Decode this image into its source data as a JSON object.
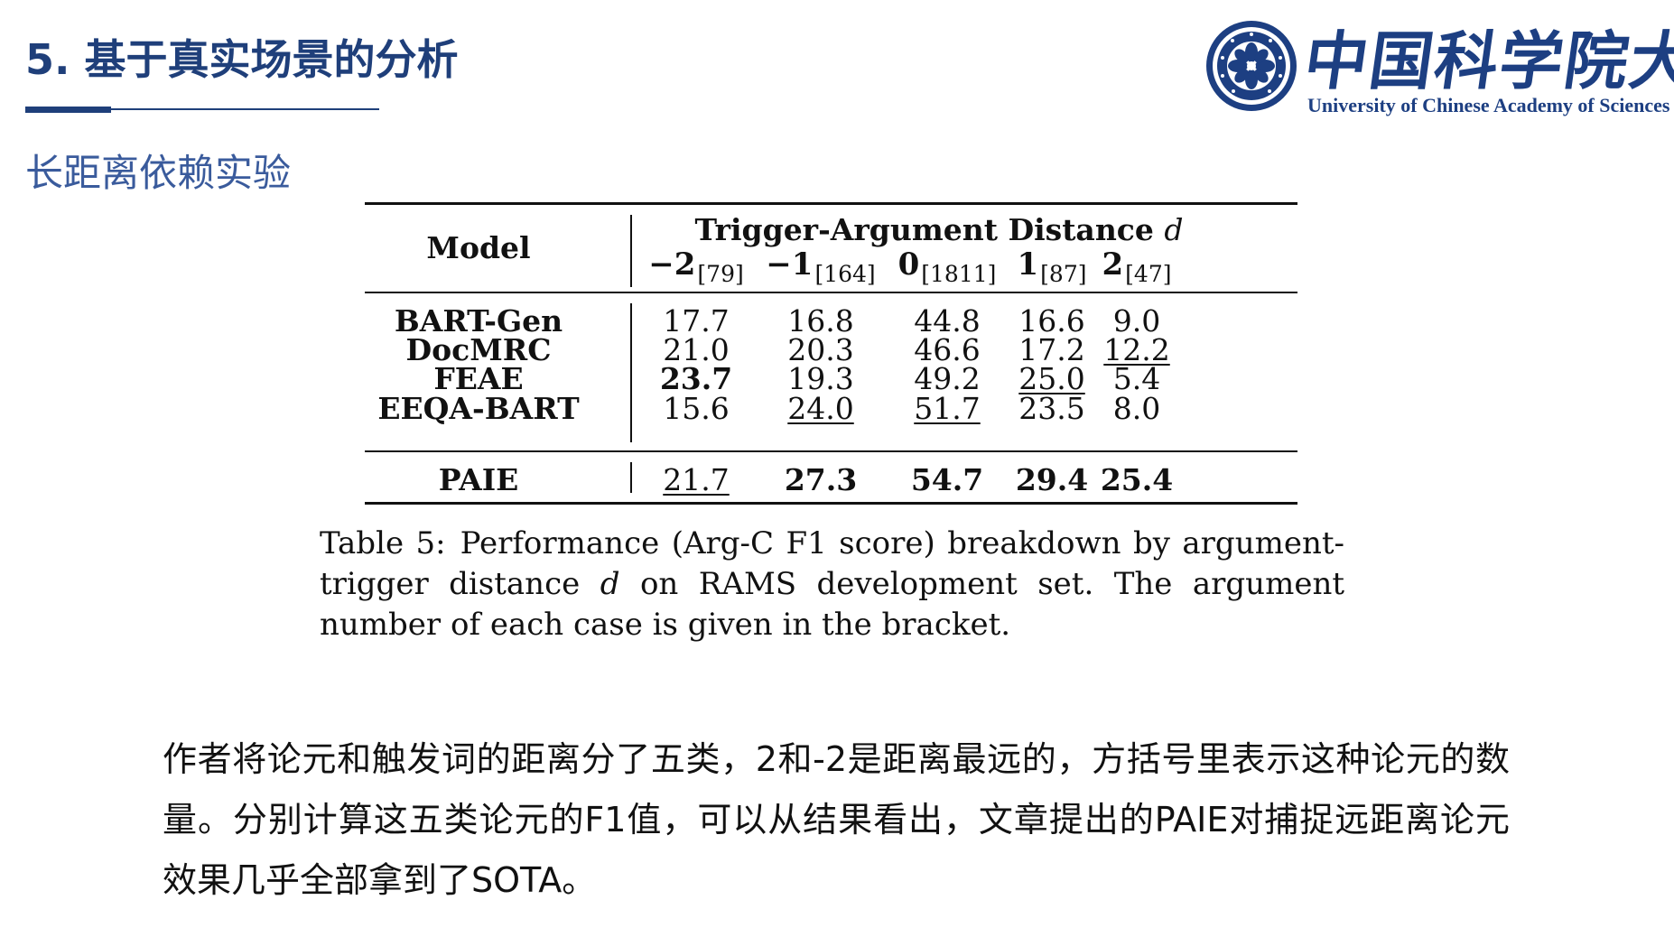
{
  "header": {
    "title": "5. 基于真实场景的分析",
    "subtitle": "长距离依赖实验"
  },
  "logo": {
    "cn_name": "中国科学院大学",
    "en_name": "University of  Chinese Academy of Sciences"
  },
  "table": {
    "model_header": "Model",
    "distance_header": "Trigger-Argument Distance",
    "distance_var": "d",
    "distances": [
      {
        "value": "−2",
        "count": "[79]"
      },
      {
        "value": "−1",
        "count": "[164]"
      },
      {
        "value": "0",
        "count": "[1811]"
      },
      {
        "value": "1",
        "count": "[87]"
      },
      {
        "value": "2",
        "count": "[47]"
      }
    ],
    "rows": [
      {
        "model": "BART-Gen",
        "cells": [
          {
            "v": "17.7",
            "bold": false,
            "ul": false
          },
          {
            "v": "16.8",
            "bold": false,
            "ul": false
          },
          {
            "v": "44.8",
            "bold": false,
            "ul": false
          },
          {
            "v": "16.6",
            "bold": false,
            "ul": false
          },
          {
            "v": "9.0",
            "bold": false,
            "ul": false
          }
        ]
      },
      {
        "model": "DocMRC",
        "cells": [
          {
            "v": "21.0",
            "bold": false,
            "ul": false
          },
          {
            "v": "20.3",
            "bold": false,
            "ul": false
          },
          {
            "v": "46.6",
            "bold": false,
            "ul": false
          },
          {
            "v": "17.2",
            "bold": false,
            "ul": false
          },
          {
            "v": "12.2",
            "bold": false,
            "ul": true
          }
        ]
      },
      {
        "model": "FEAE",
        "cells": [
          {
            "v": "23.7",
            "bold": true,
            "ul": false
          },
          {
            "v": "19.3",
            "bold": false,
            "ul": false
          },
          {
            "v": "49.2",
            "bold": false,
            "ul": false
          },
          {
            "v": "25.0",
            "bold": false,
            "ul": true
          },
          {
            "v": "5.4",
            "bold": false,
            "ul": false
          }
        ]
      },
      {
        "model": "EEQA-BART",
        "cells": [
          {
            "v": "15.6",
            "bold": false,
            "ul": false
          },
          {
            "v": "24.0",
            "bold": false,
            "ul": true
          },
          {
            "v": "51.7",
            "bold": false,
            "ul": true
          },
          {
            "v": "23.5",
            "bold": false,
            "ul": false
          },
          {
            "v": "8.0",
            "bold": false,
            "ul": false
          }
        ]
      }
    ],
    "final_row": {
      "model": "PAIE",
      "cells": [
        {
          "v": "21.7",
          "bold": false,
          "ul": true
        },
        {
          "v": "27.3",
          "bold": true,
          "ul": false
        },
        {
          "v": "54.7",
          "bold": true,
          "ul": false
        },
        {
          "v": "29.4",
          "bold": true,
          "ul": false
        },
        {
          "v": "25.4",
          "bold": true,
          "ul": false
        }
      ]
    }
  },
  "caption": {
    "label": "Table 5:",
    "before_var": "Performance (Arg-C F1 score) breakdown by argument-trigger distance ",
    "var": "d",
    "after_var": " on RAMS development set. The argument number of each case is given in the bracket."
  },
  "paragraph": "作者将论元和触发词的距离分了五类，2和-2是距离最远的，方括号里表示这种论元的数量。分别计算这五类论元的F1值，可以从结果看出，文章提出的PAIE对捕捉远距离论元效果几乎全部拿到了SOTA。"
}
